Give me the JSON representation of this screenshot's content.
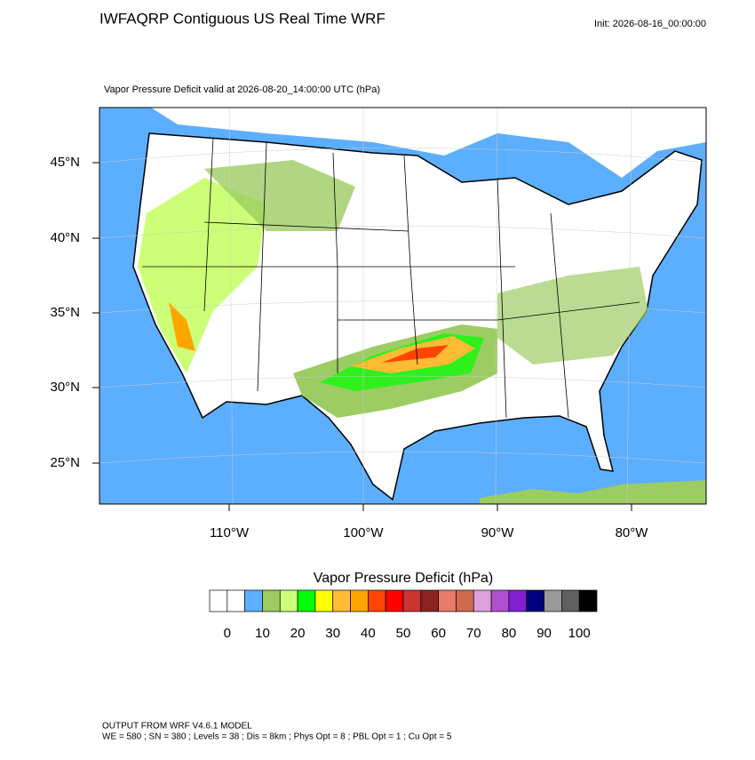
{
  "header": {
    "title": "IWFAQRP Contiguous US Real Time WRF",
    "init": "Init: 2026-08-16_00:00:00",
    "subtitle": "Vapor Pressure Deficit valid at 2026-08-20_14:00:00 UTC   (hPa)"
  },
  "map": {
    "lat_labels": [
      "45°N",
      "40°N",
      "35°N",
      "30°N",
      "25°N"
    ],
    "lon_labels": [
      "110°W",
      "100°W",
      "90°W",
      "80°W"
    ]
  },
  "colorbar": {
    "title": "Vapor Pressure Deficit  (hPa)",
    "colors": [
      "#ffffff",
      "#ffffff",
      "#5caeff",
      "#9ccc62",
      "#ccff77",
      "#00ff00",
      "#ffff00",
      "#ffbb33",
      "#ffa500",
      "#ff4500",
      "#ff0000",
      "#cc3333",
      "#8b2323",
      "#e87a6a",
      "#cd6a50",
      "#dda0dd",
      "#b050d0",
      "#8020d0",
      "#000080",
      "#999999",
      "#606060",
      "#000000"
    ],
    "labels": [
      0,
      10,
      20,
      30,
      40,
      50,
      60,
      70,
      80,
      90,
      100
    ]
  },
  "footer": {
    "line1": "OUTPUT FROM WRF V4.6.1 MODEL",
    "line2": "WE = 580 ; SN = 380 ; Levels = 38 ; Dis = 8km ; Phys Opt = 8 ; PBL Opt = 1 ; Cu Opt = 5"
  }
}
